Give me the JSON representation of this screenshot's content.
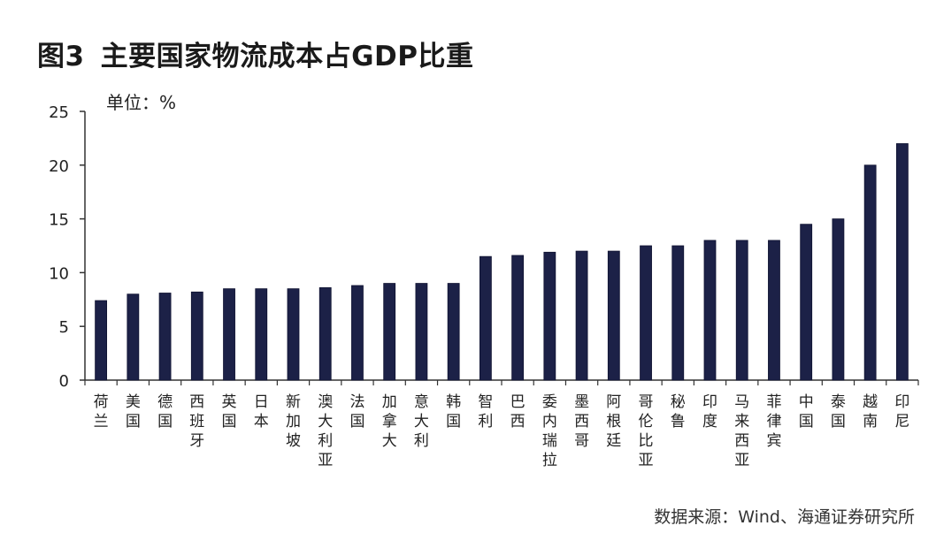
{
  "figure": {
    "number": "图3",
    "title": "主要国家物流成本占GDP比重",
    "unit_label": "单位：%",
    "source": "数据来源：Wind、海通证券研究所"
  },
  "colors": {
    "bar": "#1c2147",
    "axis": "#333333"
  },
  "chart_data": {
    "type": "bar",
    "title": "主要国家物流成本占GDP比重",
    "xlabel": "",
    "ylabel": "单位：%",
    "ylim": [
      0,
      25
    ],
    "yticks": [
      0,
      5,
      10,
      15,
      20,
      25
    ],
    "grid": false,
    "categories": [
      "荷兰",
      "美国",
      "德国",
      "西班牙",
      "英国",
      "日本",
      "新加坡",
      "澳大利亚",
      "法国",
      "加拿大",
      "意大利",
      "韩国",
      "智利",
      "巴西",
      "委内瑞拉",
      "墨西哥",
      "阿根廷",
      "哥伦比亚",
      "秘鲁",
      "印度",
      "马来西亚",
      "菲律宾",
      "中国",
      "泰国",
      "越南",
      "印尼"
    ],
    "values": [
      7.4,
      8.0,
      8.1,
      8.2,
      8.5,
      8.5,
      8.5,
      8.6,
      8.8,
      9.0,
      9.0,
      9.0,
      11.5,
      11.6,
      11.9,
      12.0,
      12.0,
      12.5,
      12.5,
      13.0,
      13.0,
      13.0,
      14.5,
      15.0,
      20.0,
      22.0
    ]
  }
}
